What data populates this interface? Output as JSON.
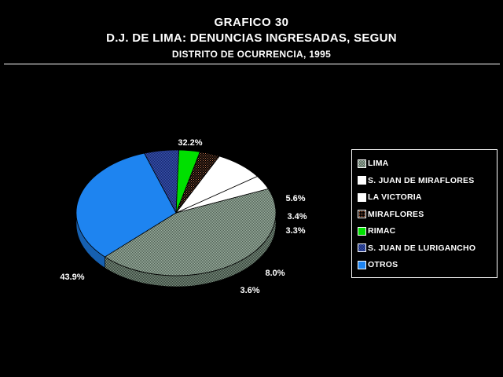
{
  "header": {
    "title": "GRAFICO  30",
    "subtitle": "D.J. DE LIMA: DENUNCIAS INGRESADAS, SEGUN",
    "subtitle2": "DISTRITO DE OCURRENCIA, 1995"
  },
  "chart_data": {
    "type": "pie",
    "title": "GRAFICO  30",
    "subtitle": "D.J. DE LIMA: DENUNCIAS INGRESADAS, SEGUN DISTRITO DE OCURRENCIA, 1995",
    "legend_position": "right",
    "slices": [
      {
        "name": "LIMA",
        "value": 43.9,
        "label": "43.9%",
        "color": "#5a7060",
        "pattern": "checker"
      },
      {
        "name": "S. JUAN DE MIRAFLORES",
        "value": 3.6,
        "label": "3.6%",
        "color": "#ffffff",
        "pattern": "none"
      },
      {
        "name": "LA VICTORIA",
        "value": 8.0,
        "label": "8.0%",
        "color": "#ffffff",
        "pattern": "none"
      },
      {
        "name": "MIRAFLORES",
        "value": 3.3,
        "label": "3.3%",
        "color": "#7a4a30",
        "pattern": "dots"
      },
      {
        "name": "RIMAC",
        "value": 3.4,
        "label": "3.4%",
        "color": "#00e000",
        "pattern": "none"
      },
      {
        "name": "S. JUAN DE LURIGANCHO",
        "value": 5.6,
        "label": "5.6%",
        "color": "#1a2e78",
        "pattern": "checker-blue"
      },
      {
        "name": "OTROS",
        "value": 32.2,
        "label": "32.2%",
        "color": "#1e84f0",
        "pattern": "none"
      }
    ]
  }
}
